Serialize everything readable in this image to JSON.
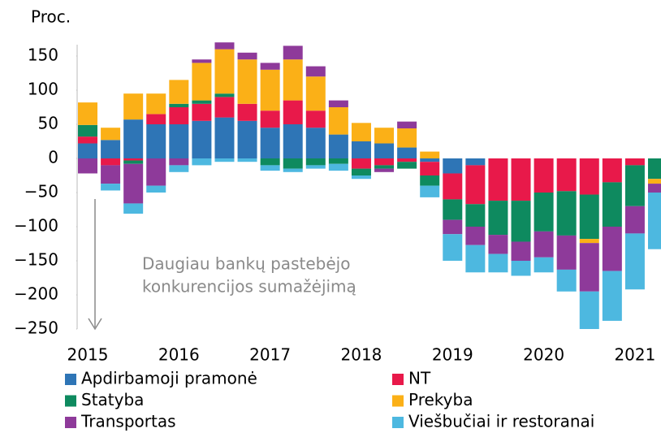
{
  "chart_data": {
    "type": "stacked_bar",
    "y_label": "Proc.",
    "categories": [
      "2015",
      null,
      null,
      null,
      "2016",
      null,
      null,
      null,
      "2017",
      null,
      null,
      null,
      "2018",
      null,
      null,
      null,
      "2019",
      null,
      null,
      null,
      "2020",
      null,
      null,
      null,
      "2021",
      null
    ],
    "series": [
      {
        "name": "Apdirbamoji pramonė",
        "color": "#2e75b6",
        "values": [
          22,
          27,
          57,
          50,
          50,
          55,
          60,
          55,
          45,
          50,
          45,
          35,
          25,
          22,
          16,
          -5,
          -22,
          -10,
          0,
          0,
          0,
          0,
          0,
          0,
          0,
          0
        ]
      },
      {
        "name": "NT",
        "color": "#e8194a",
        "values": [
          10,
          -10,
          -3,
          15,
          25,
          25,
          30,
          25,
          25,
          35,
          25,
          0,
          -15,
          -10,
          -5,
          -20,
          -38,
          -57,
          -62,
          -62,
          -50,
          -48,
          -53,
          -35,
          -10,
          0
        ]
      },
      {
        "name": "Statyba",
        "color": "#0e8a5f",
        "values": [
          17,
          0,
          -5,
          0,
          5,
          5,
          5,
          0,
          -10,
          -15,
          -10,
          -8,
          -10,
          -5,
          -10,
          -15,
          -30,
          -33,
          -50,
          -60,
          -57,
          -65,
          -65,
          -65,
          -60,
          -30
        ]
      },
      {
        "name": "Prekyba",
        "color": "#fbb017",
        "values": [
          33,
          18,
          38,
          30,
          35,
          55,
          65,
          65,
          60,
          60,
          50,
          40,
          27,
          23,
          28,
          10,
          0,
          0,
          0,
          0,
          0,
          0,
          -6,
          0,
          0,
          -7
        ]
      },
      {
        "name": "Transportas",
        "color": "#8e3a9a",
        "values": [
          -22,
          -27,
          -58,
          -40,
          -10,
          5,
          10,
          10,
          10,
          20,
          15,
          10,
          0,
          -5,
          10,
          0,
          -21,
          -27,
          -28,
          -28,
          -38,
          -50,
          -71,
          -65,
          -40,
          -13
        ]
      },
      {
        "name": "Viešbučiai ir restoranai",
        "color": "#4db8e0",
        "values": [
          0,
          -10,
          -15,
          -10,
          -10,
          -10,
          -5,
          -5,
          -8,
          -5,
          -5,
          -10,
          -5,
          0,
          0,
          -17,
          -39,
          -40,
          -27,
          -22,
          -22,
          -32,
          -55,
          -73,
          -82,
          -83
        ]
      }
    ],
    "ylim": [
      -250,
      175
    ],
    "yticks": [
      {
        "value": -250,
        "label": "−250"
      },
      {
        "value": -200,
        "label": "−200"
      },
      {
        "value": -150,
        "label": "−150"
      },
      {
        "value": -100,
        "label": "−100"
      },
      {
        "value": -50,
        "label": "−50"
      },
      0,
      50,
      100,
      150
    ],
    "annotation": [
      "Daugiau bankų pastebėjo",
      "konkurencijos sumažėjimą"
    ],
    "grid": false
  }
}
